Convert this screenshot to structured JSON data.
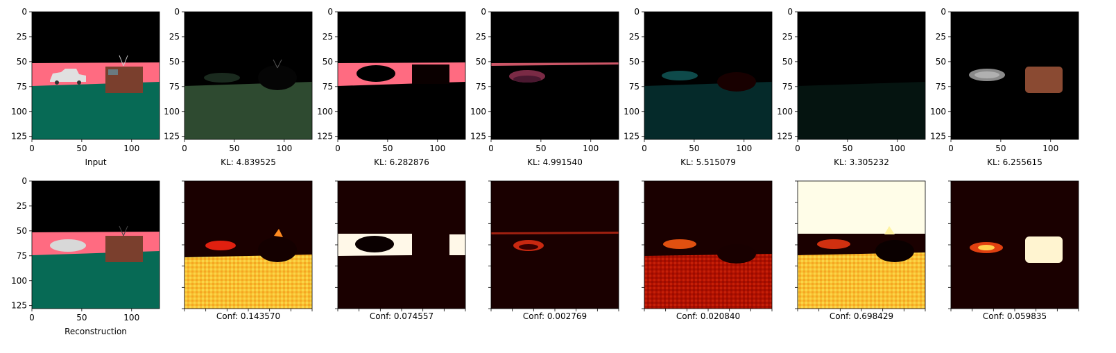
{
  "chart_data": [
    {
      "type": "image-grid",
      "top_row": [
        {
          "label": "Input",
          "content": "input-scene",
          "xticks": [
            0,
            50,
            100
          ],
          "yticks": [
            0,
            25,
            50,
            75,
            100,
            125
          ]
        },
        {
          "label": "KL: 4.839525",
          "content": "slot-1-ground",
          "xticks": [
            0,
            50,
            100
          ],
          "yticks": [
            0,
            25,
            50,
            75,
            100,
            125
          ]
        },
        {
          "label": "KL: 6.282876",
          "content": "slot-2-wall",
          "xticks": [
            0,
            50,
            100
          ],
          "yticks": [
            0,
            25,
            50,
            75,
            100,
            125
          ]
        },
        {
          "label": "KL: 4.991540",
          "content": "slot-3-faint-car",
          "xticks": [
            0,
            50,
            100
          ],
          "yticks": [
            0,
            25,
            50,
            75,
            100,
            125
          ]
        },
        {
          "label": "KL: 5.515079",
          "content": "slot-4-dark-ground",
          "xticks": [
            0,
            50,
            100
          ],
          "yticks": [
            0,
            25,
            50,
            75,
            100,
            125
          ]
        },
        {
          "label": "KL: 3.305232",
          "content": "slot-5-empty",
          "xticks": [
            0,
            50,
            100
          ],
          "yticks": [
            0,
            25,
            50,
            75,
            100,
            125
          ]
        },
        {
          "label": "KL: 6.255615",
          "content": "slot-6-objects",
          "xticks": [
            0,
            50,
            100
          ],
          "yticks": [
            0,
            25,
            50,
            75,
            100,
            125
          ]
        }
      ],
      "bottom_row": [
        {
          "label": "Reconstruction",
          "content": "reconstruction-scene",
          "xticks": [
            0,
            50,
            100
          ],
          "yticks": [
            0,
            25,
            50,
            75,
            100,
            125
          ]
        },
        {
          "label": "Conf: 0.143570",
          "content": "mask-1",
          "confidence": 0.14357
        },
        {
          "label": "Conf: 0.074557",
          "content": "mask-2",
          "confidence": 0.074557
        },
        {
          "label": "Conf: 0.002769",
          "content": "mask-3",
          "confidence": 0.002769
        },
        {
          "label": "Conf: 0.020840",
          "content": "mask-4",
          "confidence": 0.02084
        },
        {
          "label": "Conf: 0.698429",
          "content": "mask-5",
          "confidence": 0.698429
        },
        {
          "label": "Conf: 0.059835",
          "content": "mask-6",
          "confidence": 0.059835
        }
      ]
    }
  ],
  "colors": {
    "sky": "#000000",
    "wall": "#ff6b81",
    "floor": "#076a55",
    "box": "#7a3f2d",
    "car": "#e0e0e0",
    "heat_low": "#1a0000",
    "heat_high": "#fffde8"
  }
}
